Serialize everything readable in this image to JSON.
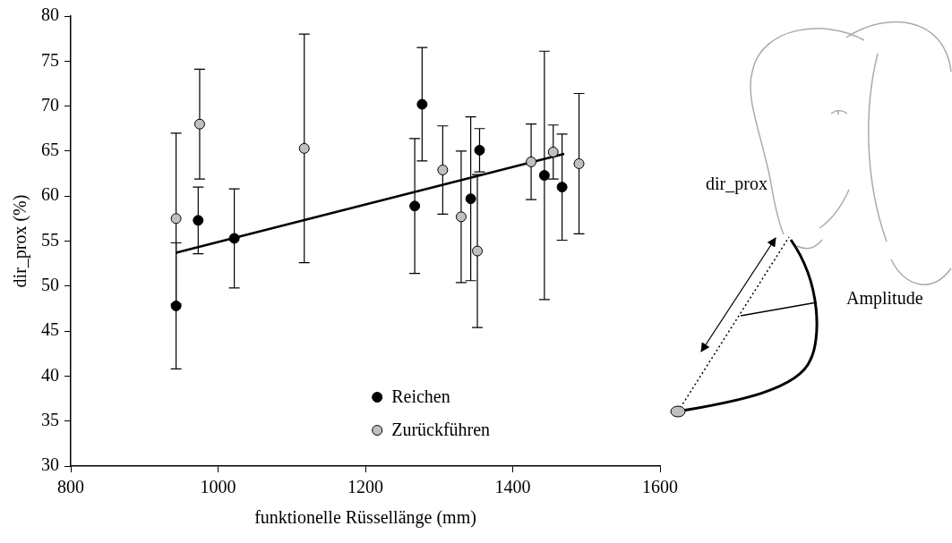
{
  "chart_data": {
    "type": "scatter",
    "x_label": "funktionelle Rüssellänge (mm)",
    "y_label": "dir_prox (%)",
    "xlim": [
      800,
      1600
    ],
    "xticks": [
      800,
      1000,
      1200,
      1400,
      1600
    ],
    "ylim": [
      30,
      80
    ],
    "yticks": [
      30,
      35,
      40,
      45,
      50,
      55,
      60,
      65,
      70,
      75,
      80
    ],
    "grid": false,
    "legend": "lower right",
    "series": [
      {
        "name": "Reichen",
        "color": "#000000",
        "marker": "circle",
        "x": [
          943,
          973,
          1022,
          1267,
          1277,
          1343,
          1355,
          1443,
          1467
        ],
        "values": [
          47.8,
          57.3,
          55.3,
          58.9,
          70.2,
          59.7,
          65.1,
          62.3,
          61.0
        ],
        "errors": [
          7.0,
          3.7,
          5.5,
          7.5,
          6.3,
          9.1,
          2.4,
          13.8,
          5.9
        ]
      },
      {
        "name": "Zurückführen",
        "color": "#c0c0c0",
        "marker": "circle",
        "x": [
          943,
          975,
          1117,
          1305,
          1330,
          1352,
          1425,
          1455,
          1490
        ],
        "values": [
          57.5,
          68.0,
          65.3,
          62.9,
          57.7,
          53.9,
          63.8,
          64.9,
          63.6
        ],
        "errors": [
          9.5,
          6.1,
          12.7,
          4.9,
          7.3,
          8.5,
          4.2,
          3.0,
          7.8
        ]
      }
    ],
    "fit_line": {
      "color": "#000000",
      "x": [
        943,
        1470
      ],
      "values": [
        53.7,
        64.7
      ]
    },
    "annotations": [
      "dir_prox",
      "Amplitude"
    ]
  }
}
